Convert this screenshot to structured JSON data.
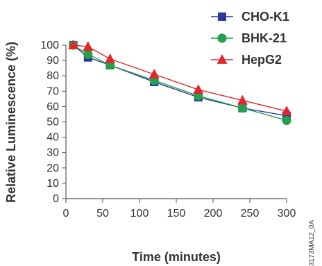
{
  "chart_data": {
    "type": "line",
    "title": "",
    "xlabel": "Time (minutes)",
    "ylabel": "Relative Luminescence (%)",
    "xlim": [
      0,
      300
    ],
    "ylim": [
      0,
      100
    ],
    "xticks": [
      0,
      50,
      100,
      150,
      200,
      250,
      300
    ],
    "yticks": [
      0,
      10,
      20,
      30,
      40,
      50,
      60,
      70,
      80,
      90,
      100
    ],
    "grid": false,
    "legend_position": "top-right",
    "x": [
      10,
      30,
      60,
      120,
      180,
      240,
      300
    ],
    "series": [
      {
        "name": "CHO-K1",
        "color": "#2b3a9a",
        "marker": "square",
        "values": [
          100,
          92,
          87,
          76,
          66,
          59,
          54
        ]
      },
      {
        "name": "BHK-21",
        "color": "#22a04b",
        "marker": "circle",
        "values": [
          100,
          94,
          87,
          77,
          67,
          59,
          51
        ]
      },
      {
        "name": "HepG2",
        "color": "#e3262b",
        "marker": "triangle",
        "values": [
          100,
          99,
          91,
          81,
          71,
          64,
          57
        ]
      }
    ]
  },
  "figure_code": "3173MA12_0A"
}
